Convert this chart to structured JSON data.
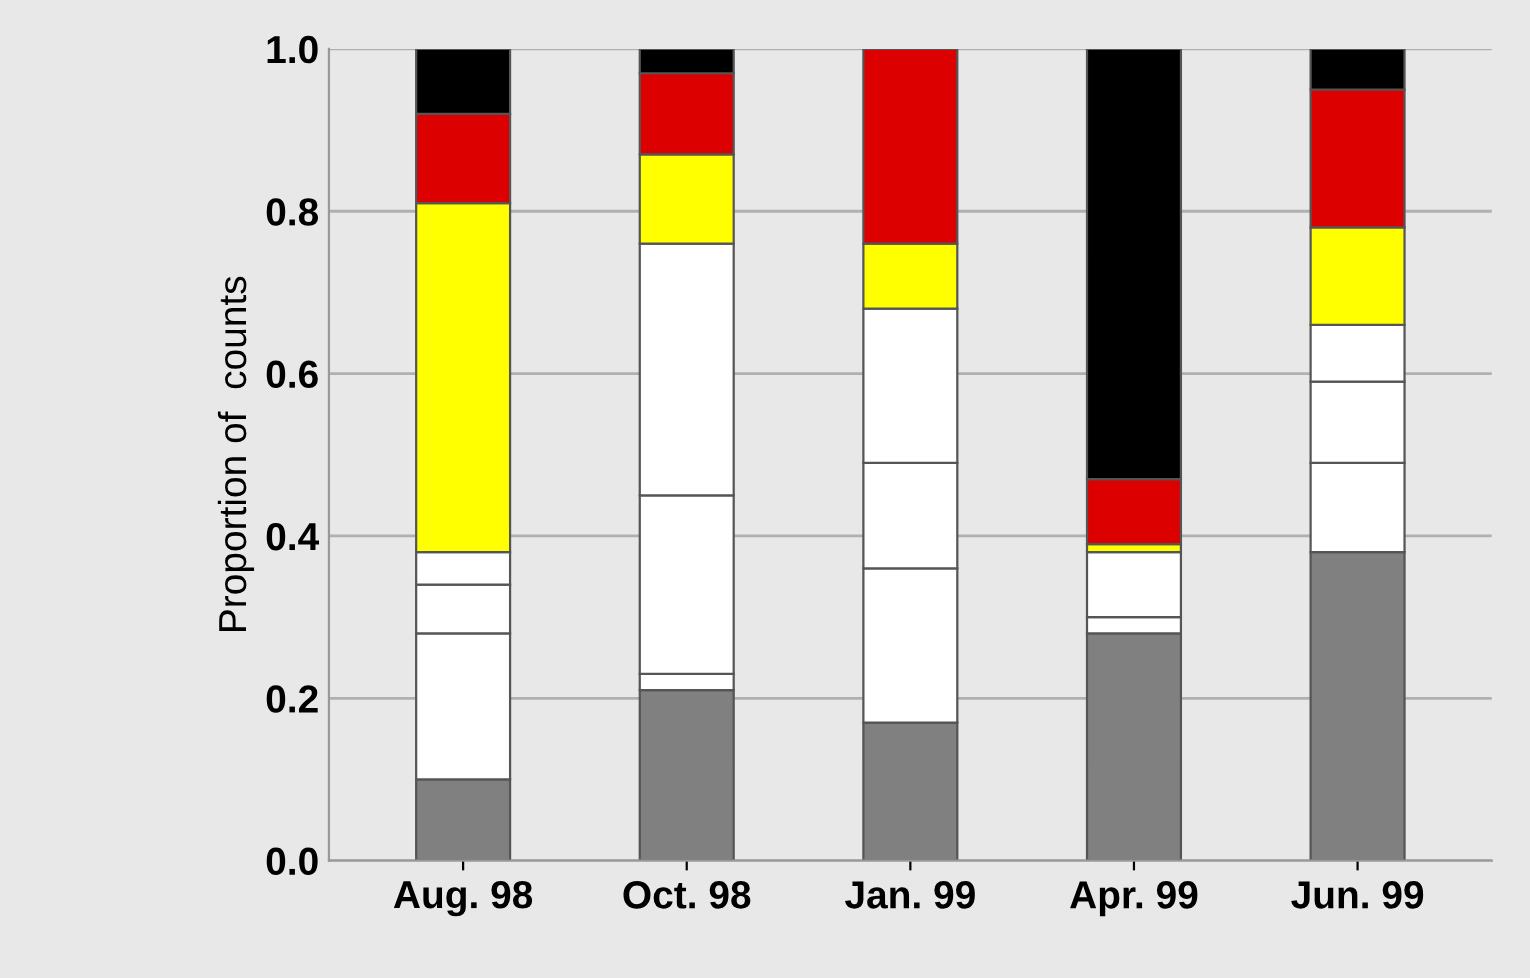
{
  "chart_data": {
    "type": "bar",
    "stacked": true,
    "ylabel": "Proportion of  counts",
    "categories": [
      "Aug. 98",
      "Oct. 98",
      "Jan. 99",
      "Apr. 99",
      "Jun. 99"
    ],
    "series": [
      {
        "color": "#808080",
        "values": [
          0.1,
          0.21,
          0.17,
          0.28,
          0.38
        ]
      },
      {
        "color": "#ffffff",
        "values": [
          0.18,
          0.02,
          0.19,
          0.02,
          0.11
        ]
      },
      {
        "color": "#ffffff",
        "values": [
          0.06,
          0.22,
          0.13,
          0.08,
          0.1
        ]
      },
      {
        "color": "#ffffff",
        "values": [
          0.04,
          0.31,
          0.19,
          0,
          0.07
        ]
      },
      {
        "color": "#ffff00",
        "values": [
          0.43,
          0.11,
          0.08,
          0.01,
          0.12
        ]
      },
      {
        "color": "#dd0000",
        "values": [
          0.11,
          0.1,
          0.24,
          0.08,
          0.17
        ]
      },
      {
        "color": "#000000",
        "values": [
          0.08,
          0.03,
          0,
          0.53,
          0.05
        ]
      }
    ],
    "ylim": [
      0,
      1
    ],
    "yticks": [
      {
        "value": 0,
        "label": "0.0"
      },
      {
        "value": 0.2,
        "label": "0.2"
      },
      {
        "value": 0.4,
        "label": "0.4"
      },
      {
        "value": 0.6,
        "label": "0.6"
      },
      {
        "value": 0.8,
        "label": "0.8"
      },
      {
        "value": 1,
        "label": "1.0"
      }
    ],
    "grid": "y",
    "legend": false
  }
}
